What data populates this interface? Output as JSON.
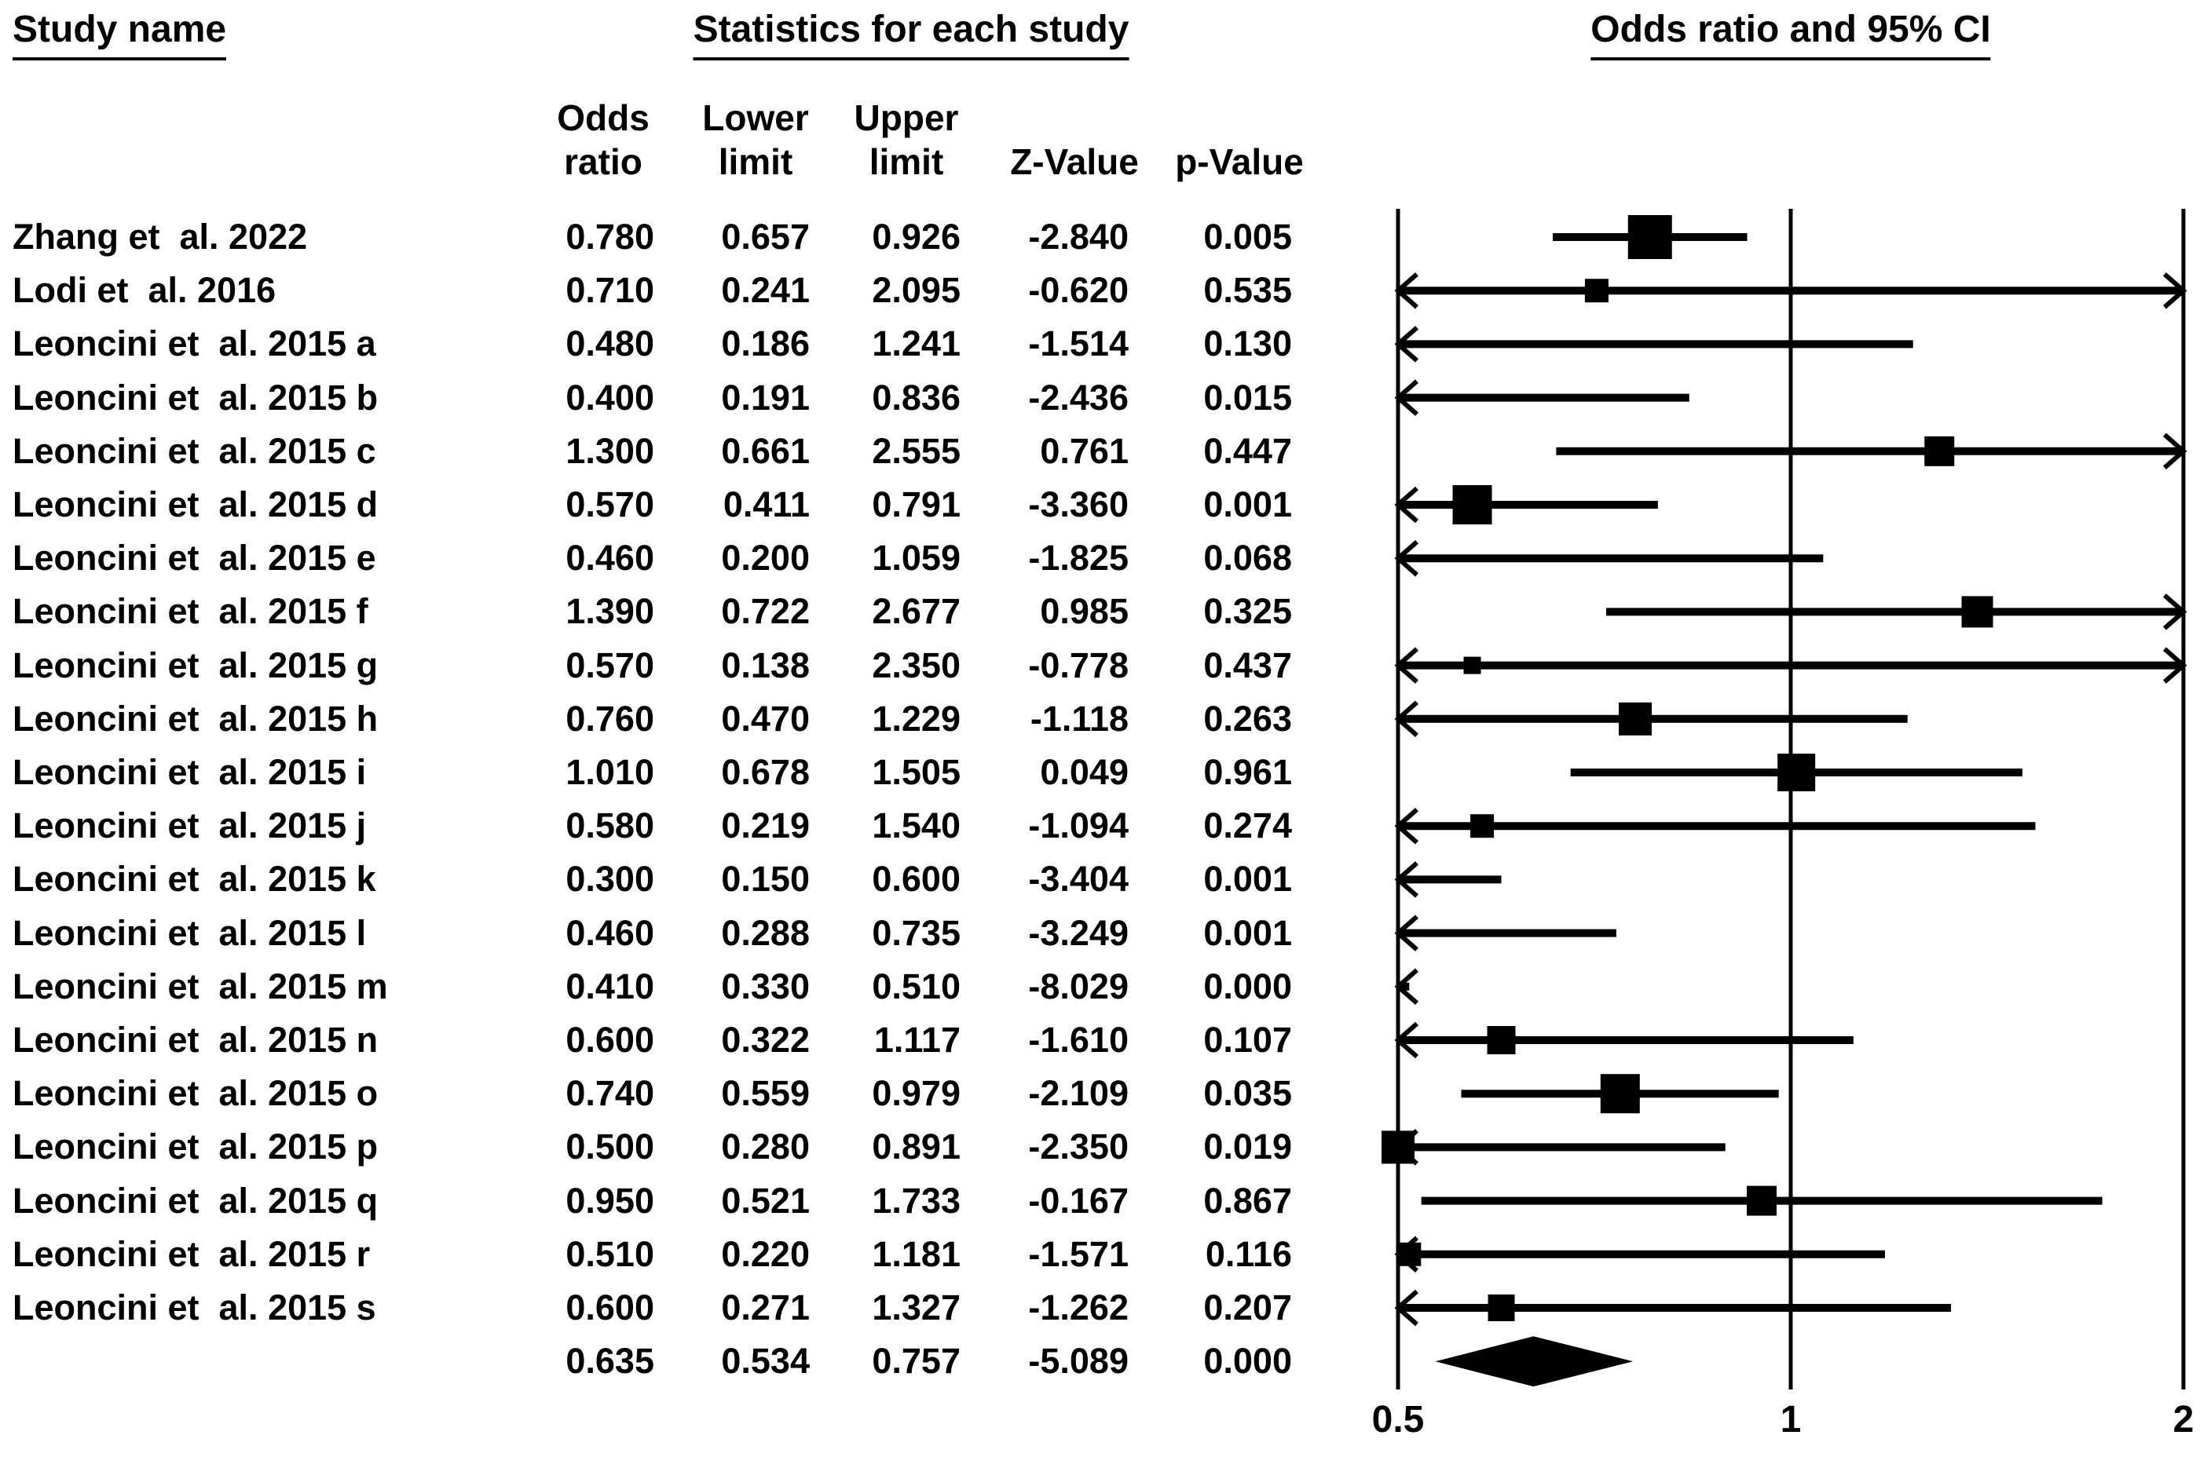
{
  "header": {
    "study_name": "Study name",
    "statistics": "Statistics for each study",
    "or_ci": "Odds ratio and 95% CI"
  },
  "subheader": {
    "odds_l1": "Odds",
    "odds_l2": "ratio",
    "lower_l1": "Lower",
    "lower_l2": "limit",
    "upper_l1": "Upper",
    "upper_l2": "limit",
    "z_l2": "Z-Value",
    "p_l2": "p-Value"
  },
  "chart_data": {
    "type": "forest",
    "x_scale": "log2",
    "x_domain": [
      0.5,
      2
    ],
    "x_ticks": [
      "0.5",
      "1",
      "2"
    ],
    "x_tick_values": [
      0.5,
      1,
      2
    ],
    "columns": [
      "Odds ratio",
      "Lower limit",
      "Upper limit",
      "Z-Value",
      "p-Value"
    ],
    "marker_color": "#000000",
    "studies": [
      {
        "name": "Zhang et  al. 2022",
        "or": 0.78,
        "lower": 0.657,
        "upper": 0.926,
        "z": -2.84,
        "p": 0.005,
        "square": 56
      },
      {
        "name": "Lodi et  al. 2016",
        "or": 0.71,
        "lower": 0.241,
        "upper": 2.095,
        "z": -0.62,
        "p": 0.535,
        "square": 30
      },
      {
        "name": "Leoncini et  al. 2015 a",
        "or": 0.48,
        "lower": 0.186,
        "upper": 1.241,
        "z": -1.514,
        "p": 0.13,
        "square": 0
      },
      {
        "name": "Leoncini et  al. 2015 b",
        "or": 0.4,
        "lower": 0.191,
        "upper": 0.836,
        "z": -2.436,
        "p": 0.015,
        "square": 0
      },
      {
        "name": "Leoncini et  al. 2015 c",
        "or": 1.3,
        "lower": 0.661,
        "upper": 2.555,
        "z": 0.761,
        "p": 0.447,
        "square": 38
      },
      {
        "name": "Leoncini et  al. 2015 d",
        "or": 0.57,
        "lower": 0.411,
        "upper": 0.791,
        "z": -3.36,
        "p": 0.001,
        "square": 50
      },
      {
        "name": "Leoncini et  al. 2015 e",
        "or": 0.46,
        "lower": 0.2,
        "upper": 1.059,
        "z": -1.825,
        "p": 0.068,
        "square": 0
      },
      {
        "name": "Leoncini et  al. 2015 f",
        "or": 1.39,
        "lower": 0.722,
        "upper": 2.677,
        "z": 0.985,
        "p": 0.325,
        "square": 40
      },
      {
        "name": "Leoncini et  al. 2015 g",
        "or": 0.57,
        "lower": 0.138,
        "upper": 2.35,
        "z": -0.778,
        "p": 0.437,
        "square": 22
      },
      {
        "name": "Leoncini et  al. 2015 h",
        "or": 0.76,
        "lower": 0.47,
        "upper": 1.229,
        "z": -1.118,
        "p": 0.263,
        "square": 42
      },
      {
        "name": "Leoncini et  al. 2015 i",
        "or": 1.01,
        "lower": 0.678,
        "upper": 1.505,
        "z": 0.049,
        "p": 0.961,
        "square": 48
      },
      {
        "name": "Leoncini et  al. 2015 j",
        "or": 0.58,
        "lower": 0.219,
        "upper": 1.54,
        "z": -1.094,
        "p": 0.274,
        "square": 30
      },
      {
        "name": "Leoncini et  al. 2015 k",
        "or": 0.3,
        "lower": 0.15,
        "upper": 0.6,
        "z": -3.404,
        "p": 0.001,
        "square": 0
      },
      {
        "name": "Leoncini et  al. 2015 l",
        "or": 0.46,
        "lower": 0.288,
        "upper": 0.735,
        "z": -3.249,
        "p": 0.001,
        "square": 0
      },
      {
        "name": "Leoncini et  al. 2015 m",
        "or": 0.41,
        "lower": 0.33,
        "upper": 0.51,
        "z": -8.029,
        "p": 0.0,
        "square": 0
      },
      {
        "name": "Leoncini et  al. 2015 n",
        "or": 0.6,
        "lower": 0.322,
        "upper": 1.117,
        "z": -1.61,
        "p": 0.107,
        "square": 36
      },
      {
        "name": "Leoncini et  al. 2015 o",
        "or": 0.74,
        "lower": 0.559,
        "upper": 0.979,
        "z": -2.109,
        "p": 0.035,
        "square": 50
      },
      {
        "name": "Leoncini et  al. 2015 p",
        "or": 0.5,
        "lower": 0.28,
        "upper": 0.891,
        "z": -2.35,
        "p": 0.019,
        "square": 42
      },
      {
        "name": "Leoncini et  al. 2015 q",
        "or": 0.95,
        "lower": 0.521,
        "upper": 1.733,
        "z": -0.167,
        "p": 0.867,
        "square": 38
      },
      {
        "name": "Leoncini et  al. 2015 r",
        "or": 0.51,
        "lower": 0.22,
        "upper": 1.181,
        "z": -1.571,
        "p": 0.116,
        "square": 30
      },
      {
        "name": "Leoncini et  al. 2015 s",
        "or": 0.6,
        "lower": 0.271,
        "upper": 1.327,
        "z": -1.262,
        "p": 0.207,
        "square": 34
      }
    ],
    "summary": {
      "or": 0.635,
      "lower": 0.534,
      "upper": 0.757,
      "z": -5.089,
      "p": 0.0
    }
  }
}
